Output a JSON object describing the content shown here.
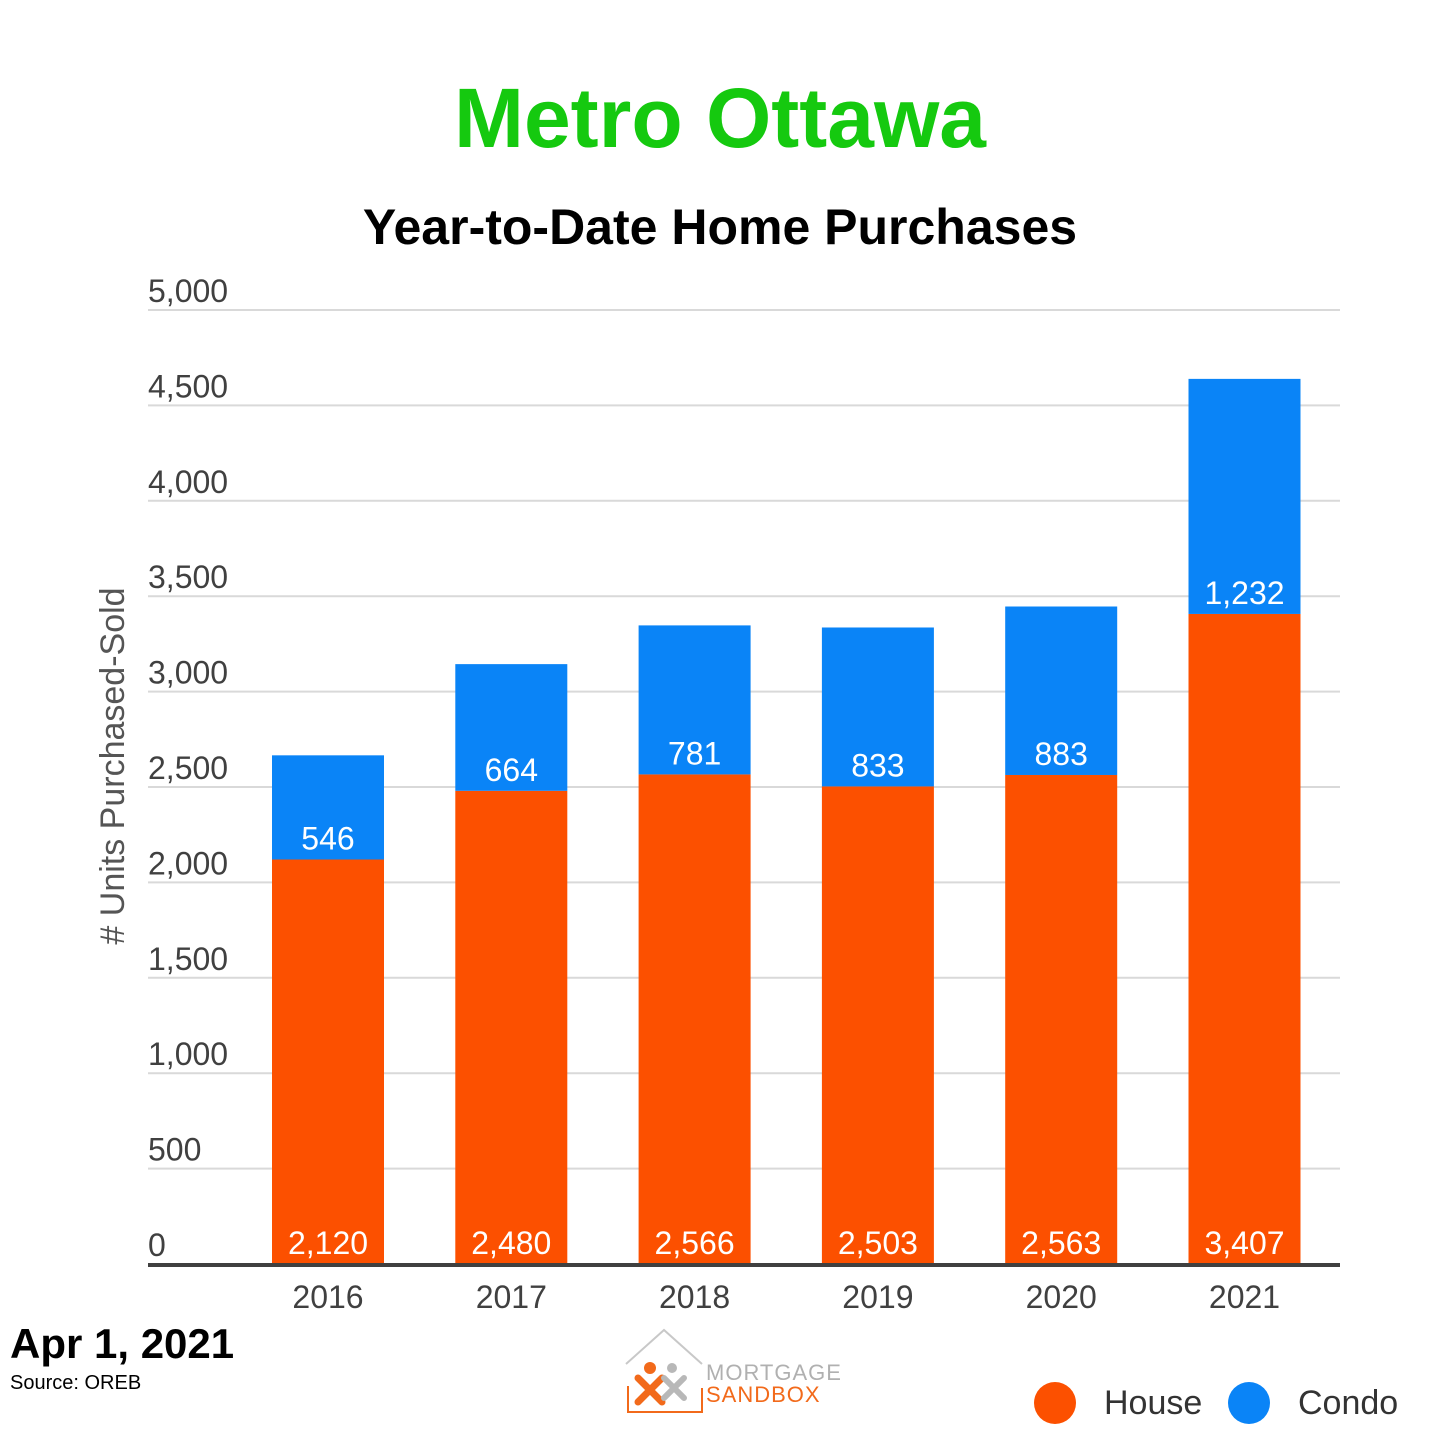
{
  "header": {
    "title": "Metro Ottawa",
    "subtitle": "Year-to-Date Home Purchases"
  },
  "footer": {
    "date": "Apr 1, 2021",
    "source": "Source: OREB"
  },
  "logo": {
    "line1": "MORTGAGE",
    "line2": "SANDBOX"
  },
  "legend": {
    "house_label": "House",
    "condo_label": "Condo"
  },
  "colors": {
    "title": "#15c90f",
    "house": "#fc5000",
    "condo": "#0a84f7",
    "grid": "#d9d9d9",
    "axis": "#404040"
  },
  "chart_data": {
    "type": "bar",
    "stacked": true,
    "ylabel": "# Units Purchased-Sold",
    "ylim": [
      0,
      5000
    ],
    "y_ticks": [
      0,
      500,
      1000,
      1500,
      2000,
      2500,
      3000,
      3500,
      4000,
      4500,
      5000
    ],
    "y_tick_labels": [
      "0",
      "500",
      "1,000",
      "1,500",
      "2,000",
      "2,500",
      "3,000",
      "3,500",
      "4,000",
      "4,500",
      "5,000"
    ],
    "categories": [
      "2016",
      "2017",
      "2018",
      "2019",
      "2020",
      "2021"
    ],
    "series": [
      {
        "name": "House",
        "values": [
          2120,
          2480,
          2566,
          2503,
          2563,
          3407
        ],
        "labels": [
          "2,120",
          "2,480",
          "2,566",
          "2,503",
          "2,563",
          "3,407"
        ]
      },
      {
        "name": "Condo",
        "values": [
          546,
          664,
          781,
          833,
          883,
          1232
        ],
        "labels": [
          "546",
          "664",
          "781",
          "833",
          "883",
          "1,232"
        ]
      }
    ],
    "grid": true,
    "legend_position": "bottom-right"
  }
}
